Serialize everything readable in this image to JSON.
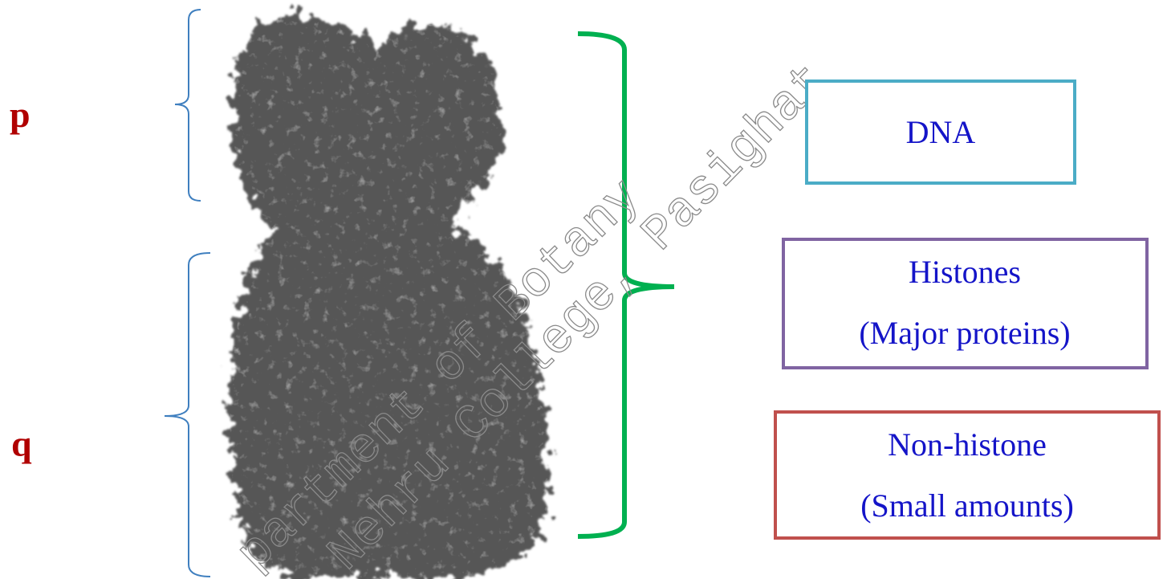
{
  "labels": {
    "p": "p",
    "q": "q"
  },
  "boxes": [
    {
      "lines": [
        "DNA"
      ]
    },
    {
      "lines": [
        "Histones",
        "(Major proteins)"
      ]
    },
    {
      "lines": [
        "Non-histone",
        "(Small amounts)"
      ]
    }
  ],
  "watermark": [
    "partment of Botany",
    "Nehru College, Pasighat"
  ]
}
